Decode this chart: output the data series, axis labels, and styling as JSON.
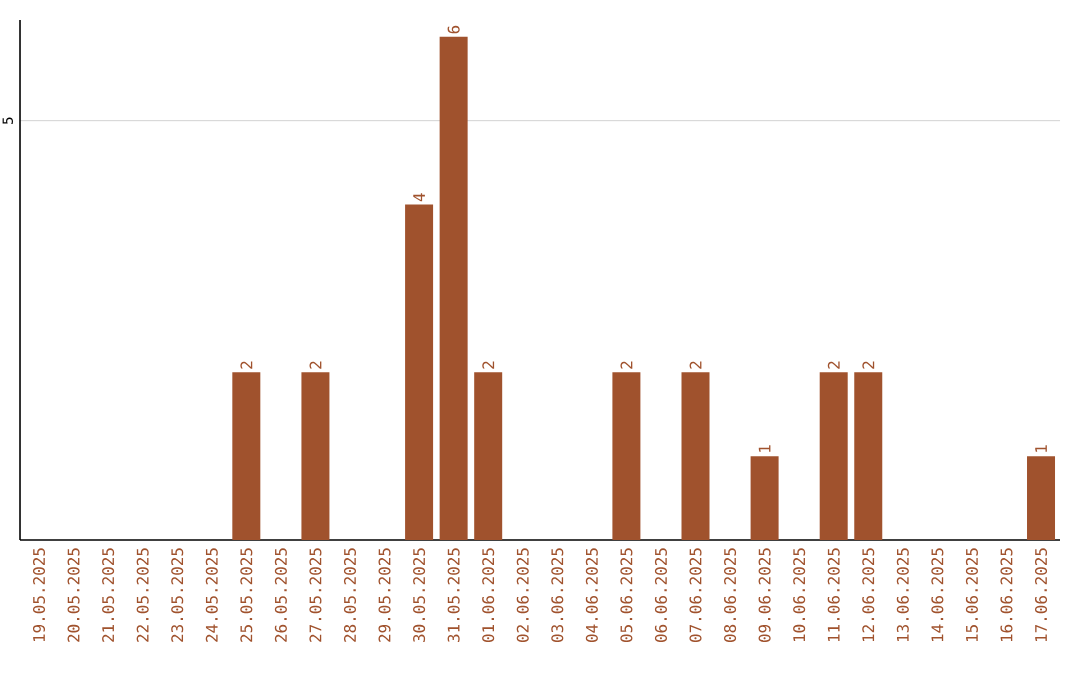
{
  "chart_data": {
    "type": "bar",
    "categories": [
      "19.05.2025",
      "20.05.2025",
      "21.05.2025",
      "22.05.2025",
      "23.05.2025",
      "24.05.2025",
      "25.05.2025",
      "26.05.2025",
      "27.05.2025",
      "28.05.2025",
      "29.05.2025",
      "30.05.2025",
      "31.05.2025",
      "01.06.2025",
      "02.06.2025",
      "03.06.2025",
      "04.06.2025",
      "05.06.2025",
      "06.06.2025",
      "07.06.2025",
      "08.06.2025",
      "09.06.2025",
      "10.06.2025",
      "11.06.2025",
      "12.06.2025",
      "13.06.2025",
      "14.06.2025",
      "15.06.2025",
      "16.06.2025",
      "17.06.2025"
    ],
    "values": [
      0,
      0,
      0,
      0,
      0,
      0,
      2,
      0,
      2,
      0,
      0,
      4,
      6,
      2,
      0,
      0,
      0,
      2,
      0,
      2,
      0,
      1,
      0,
      2,
      2,
      0,
      0,
      0,
      0,
      1
    ],
    "value_labels": [
      null,
      null,
      null,
      null,
      null,
      null,
      "2",
      null,
      "2",
      null,
      null,
      "4",
      "6",
      "2",
      null,
      null,
      null,
      "2",
      null,
      "2",
      null,
      "1",
      null,
      "2",
      "2",
      null,
      null,
      null,
      null,
      "1"
    ],
    "color": "#a0522d",
    "ylim": [
      0,
      6.2
    ],
    "yticks": [
      5
    ],
    "grid": "y"
  }
}
